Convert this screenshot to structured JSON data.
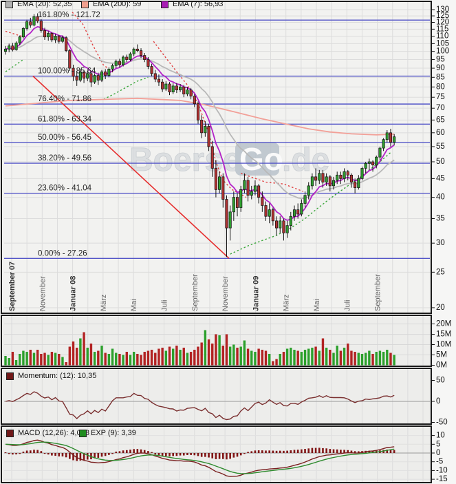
{
  "watermark": {
    "pre": "Boerse",
    "badge": "Go",
    "post": ".de",
    "full": "BoerseGo.de"
  },
  "main_legend": {
    "ema20": {
      "label": "EMA (20): 52,35",
      "color": "#b2b2b2"
    },
    "ema200": {
      "label": "EMA (200): 59",
      "color": "#f2a08f"
    },
    "ema7": {
      "label": "EMA (7): 56,93",
      "color": "#a81cb4"
    }
  },
  "momentum_legend": {
    "label": "Momentum: (12): 10,35",
    "color": "#701818"
  },
  "macd_legend": {
    "macd": {
      "label": "MACD (12,26): 4,028",
      "color": "#701818"
    },
    "exp": {
      "label": "EXP (9): 3,39",
      "color": "#1f8c1f"
    }
  },
  "fib_levels": [
    {
      "label": "161.80% - 121.72",
      "price": 121.72
    },
    {
      "label": "100.00% - 85.64",
      "price": 85.64
    },
    {
      "label": "76.40% - 71.86",
      "price": 71.86
    },
    {
      "label": "61.80% - 63.34",
      "price": 63.34
    },
    {
      "label": "50.00% - 56.45",
      "price": 56.45
    },
    {
      "label": "38.20% - 49.56",
      "price": 49.56
    },
    {
      "label": "23.60% - 41.04",
      "price": 41.04
    },
    {
      "label": "0.00% - 27.26",
      "price": 27.26
    }
  ],
  "axes": {
    "price_ticks": [
      130,
      125,
      120,
      115,
      110,
      105,
      100,
      95,
      90,
      85,
      80,
      75,
      70,
      65,
      60,
      55,
      50,
      45,
      40,
      35,
      30,
      25,
      20
    ],
    "volume_ticks": [
      {
        "label": "20M",
        "value": 20
      },
      {
        "label": "15M",
        "value": 15
      },
      {
        "label": "10M",
        "value": 10
      },
      {
        "label": "5M",
        "value": 5
      },
      {
        "label": "0M",
        "value": 0
      }
    ],
    "momentum_ticks": [
      {
        "label": "50",
        "value": 50
      },
      {
        "label": "0",
        "value": 0
      },
      {
        "label": "-50",
        "value": -50
      }
    ],
    "macd_ticks": [
      {
        "label": "10",
        "value": 10
      },
      {
        "label": "5",
        "value": 5
      },
      {
        "label": "0",
        "value": 0
      },
      {
        "label": "-5",
        "value": -5
      },
      {
        "label": "-10",
        "value": -10
      },
      {
        "label": "-15",
        "value": -15
      }
    ],
    "date_labels": [
      {
        "text": "September 07",
        "bold": true
      },
      {
        "text": "November",
        "bold": false
      },
      {
        "text": "Januar 08",
        "bold": true
      },
      {
        "text": "März",
        "bold": false
      },
      {
        "text": "Mai",
        "bold": false
      },
      {
        "text": "Juli",
        "bold": false
      },
      {
        "text": "September",
        "bold": false
      },
      {
        "text": "November",
        "bold": false
      },
      {
        "text": "Januar 09",
        "bold": true
      },
      {
        "text": "März",
        "bold": false
      },
      {
        "text": "Mai",
        "bold": false
      },
      {
        "text": "Juli",
        "bold": false
      },
      {
        "text": "September",
        "bold": false
      }
    ]
  },
  "chart_data": [
    {
      "type": "candlestick",
      "series_name": "weekly-ohlc",
      "y_scale": "log",
      "ylim": [
        20,
        130
      ],
      "candles": [
        [
          100,
          103.5,
          98,
          101.5
        ],
        [
          101.5,
          105,
          99.5,
          103.5
        ],
        [
          103.5,
          105.5,
          100,
          101
        ],
        [
          101,
          106.5,
          100.5,
          105.5
        ],
        [
          105.5,
          110.5,
          104,
          109.5
        ],
        [
          109.5,
          116.5,
          108.5,
          115.5
        ],
        [
          115.5,
          122,
          114,
          120.5
        ],
        [
          120.5,
          123.5,
          116,
          118
        ],
        [
          118,
          126.5,
          117,
          124.5
        ],
        [
          124.5,
          127,
          119.5,
          121
        ],
        [
          121,
          122.5,
          112.5,
          114
        ],
        [
          114,
          116,
          107.5,
          109.5
        ],
        [
          109.5,
          113.5,
          107,
          112
        ],
        [
          112,
          113,
          106,
          107.5
        ],
        [
          107.5,
          111.5,
          105.5,
          110
        ],
        [
          110,
          111,
          105,
          106.5
        ],
        [
          106.5,
          110.5,
          105.5,
          109
        ],
        [
          109,
          110,
          99.5,
          100.5
        ],
        [
          100.5,
          101.5,
          88.5,
          90
        ],
        [
          90,
          92,
          83,
          85.5
        ],
        [
          85.5,
          88.5,
          80.5,
          83.5
        ],
        [
          83.5,
          89.5,
          82.5,
          88
        ],
        [
          88,
          89,
          82,
          84.5
        ],
        [
          84.5,
          88.5,
          83,
          87
        ],
        [
          87,
          88,
          80,
          82.5
        ],
        [
          82.5,
          87,
          81.5,
          86
        ],
        [
          86,
          87.5,
          81,
          83.5
        ],
        [
          83.5,
          89,
          82.5,
          88
        ],
        [
          88,
          89.5,
          84,
          86
        ],
        [
          86,
          90.5,
          85,
          89.5
        ],
        [
          89.5,
          92.5,
          88,
          91.5
        ],
        [
          91.5,
          95,
          90,
          94
        ],
        [
          94,
          95.5,
          90.5,
          92
        ],
        [
          92,
          97.5,
          91,
          96.5
        ],
        [
          96.5,
          98,
          93.5,
          95
        ],
        [
          95,
          99.5,
          94,
          98.5
        ],
        [
          98.5,
          102.5,
          97,
          101.5
        ],
        [
          101.5,
          104.5,
          99.5,
          100.5
        ],
        [
          100.5,
          102,
          96,
          97.5
        ],
        [
          97.5,
          99,
          93.5,
          95
        ],
        [
          95,
          96.5,
          89.5,
          91
        ],
        [
          91,
          92.5,
          85.5,
          87
        ],
        [
          87,
          89,
          82.5,
          84
        ],
        [
          84,
          86.5,
          80.5,
          82.5
        ],
        [
          82.5,
          84,
          77.5,
          79
        ],
        [
          79,
          83,
          78,
          81.5
        ],
        [
          81.5,
          82.5,
          76,
          77.5
        ],
        [
          77.5,
          82,
          76.5,
          80.5
        ],
        [
          80.5,
          82,
          77,
          78.5
        ],
        [
          78.5,
          81.5,
          77.5,
          80
        ],
        [
          80,
          81,
          75,
          76.5
        ],
        [
          76.5,
          80,
          75.5,
          78.5
        ],
        [
          78.5,
          79.5,
          74,
          75.5
        ],
        [
          75.5,
          76.5,
          70.5,
          72
        ],
        [
          72,
          73,
          63.5,
          65
        ],
        [
          65,
          67,
          58,
          60
        ],
        [
          60,
          64.5,
          58.5,
          62.5
        ],
        [
          62.5,
          63.5,
          53.5,
          55
        ],
        [
          55,
          57,
          45.5,
          48
        ],
        [
          48,
          50.5,
          40,
          42
        ],
        [
          42,
          47,
          41,
          45.5
        ],
        [
          45.5,
          46.5,
          37.5,
          39.5
        ],
        [
          39.5,
          40.5,
          27.5,
          33
        ],
        [
          33,
          38,
          30.5,
          36.5
        ],
        [
          36.5,
          41.5,
          34.5,
          40
        ],
        [
          40,
          41,
          35.5,
          37.5
        ],
        [
          37.5,
          43,
          36.5,
          42
        ],
        [
          42,
          46.5,
          41,
          44.5
        ],
        [
          44.5,
          45.5,
          39,
          40.5
        ],
        [
          40.5,
          43,
          39.5,
          41.5
        ],
        [
          41.5,
          44.5,
          40.5,
          43
        ],
        [
          43,
          43.5,
          38.5,
          40
        ],
        [
          40,
          41.5,
          36.5,
          38
        ],
        [
          38,
          39,
          34.5,
          35.5
        ],
        [
          35.5,
          38.5,
          34,
          37
        ],
        [
          37,
          37.5,
          33.5,
          34.5
        ],
        [
          34.5,
          35.5,
          31.5,
          33
        ],
        [
          33,
          35.5,
          32,
          34.5
        ],
        [
          34.5,
          35,
          30.5,
          32
        ],
        [
          32,
          34.5,
          31,
          33.5
        ],
        [
          33.5,
          36.5,
          32.5,
          35.5
        ],
        [
          35.5,
          38,
          34.5,
          37
        ],
        [
          37,
          38.5,
          35,
          36
        ],
        [
          36,
          39.5,
          35.5,
          38.5
        ],
        [
          38.5,
          41.5,
          37.5,
          40.5
        ],
        [
          40.5,
          44,
          39.5,
          43
        ],
        [
          43,
          46.5,
          42,
          45.5
        ],
        [
          45.5,
          48,
          43,
          44.5
        ],
        [
          44.5,
          47.5,
          43.5,
          46.5
        ],
        [
          46.5,
          47.5,
          42.5,
          44
        ],
        [
          44,
          46.5,
          43,
          45.5
        ],
        [
          45.5,
          46,
          41.5,
          43
        ],
        [
          43,
          45.5,
          42,
          44.5
        ],
        [
          44.5,
          47,
          43.5,
          46
        ],
        [
          46,
          47,
          43.5,
          45
        ],
        [
          45,
          48,
          44,
          47
        ],
        [
          47,
          47.5,
          44.5,
          46
        ],
        [
          46,
          46.5,
          42.5,
          44
        ],
        [
          44,
          45,
          41,
          42.5
        ],
        [
          42.5,
          46,
          42,
          45
        ],
        [
          45,
          48.5,
          44.5,
          48
        ],
        [
          48,
          50,
          46.5,
          49.5
        ],
        [
          49.5,
          51,
          47.5,
          50
        ],
        [
          50,
          50.5,
          47,
          49
        ],
        [
          49,
          52,
          48,
          51.5
        ],
        [
          51.5,
          55,
          50.5,
          54.5
        ],
        [
          54.5,
          58,
          53.5,
          57.5
        ],
        [
          57.5,
          61,
          56.5,
          60
        ],
        [
          60,
          61.5,
          55,
          56.5
        ],
        [
          56.5,
          59.5,
          55.5,
          58.5
        ]
      ],
      "overlays": {
        "ema_periods": [
          7,
          20
        ],
        "ema200_anchors": [
          [
            0,
            71
          ],
          [
            18,
            73.5
          ],
          [
            37,
            74.5
          ],
          [
            49,
            73.5
          ],
          [
            56,
            71.5
          ],
          [
            64,
            68.5
          ],
          [
            72,
            65.5
          ],
          [
            80,
            63
          ],
          [
            85,
            61.5
          ],
          [
            91,
            60.3
          ],
          [
            97,
            59.6
          ],
          [
            104,
            59.2
          ],
          [
            109,
            59.5
          ]
        ],
        "trendline": [
          [
            7.7,
            85.64
          ],
          [
            62.7,
            27.26
          ]
        ],
        "red_dotted": [
          [
            [
              0,
              113.5
            ],
            [
              4.5,
              110
            ]
          ],
          [
            [
              18.7,
              128
            ],
            [
              21.6,
              119
            ],
            [
              24.5,
              104
            ],
            [
              27.4,
              92
            ],
            [
              30.3,
              87.5
            ]
          ],
          [
            [
              41.5,
              106.5
            ],
            [
              45,
              96
            ],
            [
              48,
              88
            ],
            [
              51,
              81
            ],
            [
              54,
              72
            ],
            [
              57,
              60
            ],
            [
              59,
              50
            ],
            [
              61,
              44.5
            ],
            [
              63.5,
              42
            ],
            [
              67.5,
              40
            ]
          ],
          [
            [
              66,
              46.5
            ],
            [
              73,
              44
            ],
            [
              78,
              43.5
            ],
            [
              83.5,
              41.5
            ]
          ]
        ],
        "green_dotted": [
          [
            [
              0,
              88
            ],
            [
              5,
              95
            ]
          ],
          [
            [
              27.5,
              74
            ],
            [
              31,
              77
            ],
            [
              34,
              80
            ],
            [
              37,
              83
            ],
            [
              40,
              85
            ]
          ],
          [
            [
              63,
              28
            ],
            [
              68,
              29.5
            ],
            [
              72,
              30.5
            ],
            [
              76,
              31.5
            ],
            [
              80,
              33
            ],
            [
              84,
              35
            ],
            [
              87,
              37
            ],
            [
              90,
              39
            ],
            [
              93,
              41
            ],
            [
              96,
              43
            ],
            [
              99,
              45
            ],
            [
              102,
              47.5
            ],
            [
              105,
              50
            ],
            [
              108,
              53
            ]
          ]
        ]
      }
    },
    {
      "type": "bar",
      "series_name": "volume-millions",
      "values": [
        4.5,
        3.5,
        6.5,
        2.5,
        5.5,
        7,
        6.5,
        7.5,
        6,
        7.5,
        5.5,
        6,
        5,
        6.5,
        6,
        5.5,
        4,
        1.5,
        9,
        11.5,
        8.5,
        13,
        16,
        8.5,
        10.5,
        6.5,
        7,
        9.5,
        6,
        5.5,
        8,
        6,
        5.5,
        5,
        6.5,
        5,
        6.5,
        5.5,
        5,
        6.5,
        7,
        7.5,
        6,
        8,
        8.5,
        7,
        9,
        8,
        9.5,
        7.5,
        8.5,
        6,
        6.5,
        7.5,
        9,
        11,
        17,
        12.5,
        10.5,
        15,
        14.5,
        9.5,
        15,
        9,
        10,
        8.5,
        9,
        12,
        8,
        7,
        6.5,
        8,
        7.5,
        7,
        5.5,
        2,
        3,
        5.5,
        6.5,
        8,
        8.5,
        7.5,
        7,
        6.5,
        7.5,
        8,
        8.5,
        9,
        7,
        13,
        8.5,
        7.5,
        6,
        9.5,
        7,
        8.5,
        10.5,
        7,
        6.5,
        6,
        5.5,
        6,
        7,
        5.5,
        6.5,
        7,
        6.5,
        7.5,
        6,
        5
      ]
    },
    {
      "type": "line",
      "series_name": "momentum",
      "period": 12,
      "last_value": 10.35
    },
    {
      "type": "line",
      "series_name": "macd",
      "fast": 12,
      "slow": 26,
      "signal": 9,
      "start_offset": 5,
      "last_macd": 4.028,
      "last_signal": 3.39
    }
  ],
  "colors": {
    "up": "#2f9e2f",
    "down": "#b03232",
    "wick": "#111111",
    "fib_line": "#5456c8",
    "trend": "#e62e2e",
    "ema7": "#b322c8",
    "ema20": "#b8b8b8",
    "ema200": "#f2a098",
    "red_dotted": "#e04040",
    "green_dotted": "#3aa63a",
    "vol_up": "#2ca02c",
    "vol_down": "#b22222",
    "momentum": "#7a2f2f",
    "macd": "#7a2020",
    "macd_signal": "#2e8b2e",
    "hist": "#801515"
  }
}
